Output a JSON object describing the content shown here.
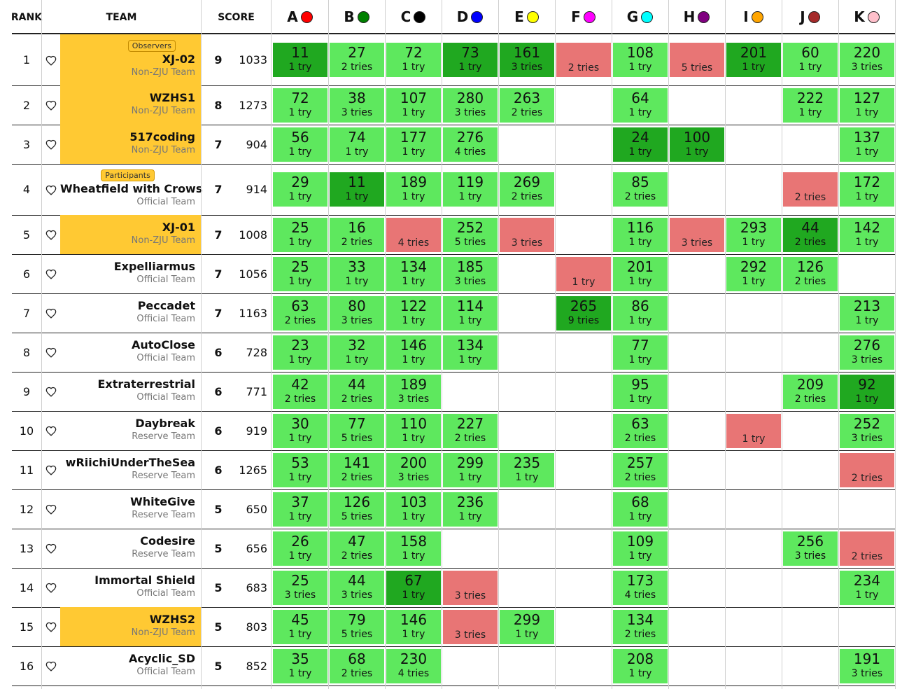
{
  "header": {
    "rank": "RANK",
    "team": "TEAM",
    "score": "SCORE"
  },
  "problems": [
    {
      "letter": "A",
      "color": "#ff0000"
    },
    {
      "letter": "B",
      "color": "#008000"
    },
    {
      "letter": "C",
      "color": "#000000"
    },
    {
      "letter": "D",
      "color": "#0000ff"
    },
    {
      "letter": "E",
      "color": "#ffff00"
    },
    {
      "letter": "F",
      "color": "#ff00ff"
    },
    {
      "letter": "G",
      "color": "#00ffff"
    },
    {
      "letter": "H",
      "color": "#800080"
    },
    {
      "letter": "I",
      "color": "#ffa500"
    },
    {
      "letter": "J",
      "color": "#a52a2a"
    },
    {
      "letter": "K",
      "color": "#ffc0cb"
    }
  ],
  "colors": {
    "solved": "#5ee85e",
    "first_solve": "#20a820",
    "failed": "#e87575",
    "highlight": "#ffc933"
  },
  "icons": {
    "favorite": "heart-outline-icon"
  },
  "rows": [
    {
      "rank": "1",
      "name": "XJ-02",
      "type": "Non-ZJU Team",
      "badge": "Observers",
      "highlight": true,
      "solved": "9",
      "penalty": "1033",
      "results": [
        {
          "s": "first",
          "time": "11",
          "attempts": "1 try"
        },
        {
          "s": "solved",
          "time": "27",
          "attempts": "2 tries"
        },
        {
          "s": "solved",
          "time": "72",
          "attempts": "1 try"
        },
        {
          "s": "first",
          "time": "73",
          "attempts": "1 try"
        },
        {
          "s": "first",
          "time": "161",
          "attempts": "3 tries"
        },
        {
          "s": "failed",
          "attempts": "2 tries"
        },
        {
          "s": "solved",
          "time": "108",
          "attempts": "1 try"
        },
        {
          "s": "failed",
          "attempts": "5 tries"
        },
        {
          "s": "first",
          "time": "201",
          "attempts": "1 try"
        },
        {
          "s": "solved",
          "time": "60",
          "attempts": "1 try"
        },
        {
          "s": "solved",
          "time": "220",
          "attempts": "3 tries"
        }
      ]
    },
    {
      "rank": "2",
      "name": "WZHS1",
      "type": "Non-ZJU Team",
      "highlight": true,
      "solved": "8",
      "penalty": "1273",
      "results": [
        {
          "s": "solved",
          "time": "72",
          "attempts": "1 try"
        },
        {
          "s": "solved",
          "time": "38",
          "attempts": "3 tries"
        },
        {
          "s": "solved",
          "time": "107",
          "attempts": "1 try"
        },
        {
          "s": "solved",
          "time": "280",
          "attempts": "3 tries"
        },
        {
          "s": "solved",
          "time": "263",
          "attempts": "2 tries"
        },
        null,
        {
          "s": "solved",
          "time": "64",
          "attempts": "1 try"
        },
        null,
        null,
        {
          "s": "solved",
          "time": "222",
          "attempts": "1 try"
        },
        {
          "s": "solved",
          "time": "127",
          "attempts": "1 try"
        }
      ]
    },
    {
      "rank": "3",
      "name": "517coding",
      "type": "Non-ZJU Team",
      "highlight": true,
      "solved": "7",
      "penalty": "904",
      "results": [
        {
          "s": "solved",
          "time": "56",
          "attempts": "1 try"
        },
        {
          "s": "solved",
          "time": "74",
          "attempts": "1 try"
        },
        {
          "s": "solved",
          "time": "177",
          "attempts": "1 try"
        },
        {
          "s": "solved",
          "time": "276",
          "attempts": "4 tries"
        },
        null,
        null,
        {
          "s": "first",
          "time": "24",
          "attempts": "1 try"
        },
        {
          "s": "first",
          "time": "100",
          "attempts": "1 try"
        },
        null,
        null,
        {
          "s": "solved",
          "time": "137",
          "attempts": "1 try"
        }
      ]
    },
    {
      "rank": "4",
      "name": "Wheatfield with Crows",
      "type": "Official Team",
      "badge": "Participants",
      "highlight": false,
      "solved": "7",
      "penalty": "914",
      "results": [
        {
          "s": "solved",
          "time": "29",
          "attempts": "1 try"
        },
        {
          "s": "first",
          "time": "11",
          "attempts": "1 try"
        },
        {
          "s": "solved",
          "time": "189",
          "attempts": "1 try"
        },
        {
          "s": "solved",
          "time": "119",
          "attempts": "1 try"
        },
        {
          "s": "solved",
          "time": "269",
          "attempts": "2 tries"
        },
        null,
        {
          "s": "solved",
          "time": "85",
          "attempts": "2 tries"
        },
        null,
        null,
        {
          "s": "failed",
          "attempts": "2 tries"
        },
        {
          "s": "solved",
          "time": "172",
          "attempts": "1 try"
        }
      ]
    },
    {
      "rank": "5",
      "name": "XJ-01",
      "type": "Non-ZJU Team",
      "highlight": true,
      "solved": "7",
      "penalty": "1008",
      "results": [
        {
          "s": "solved",
          "time": "25",
          "attempts": "1 try"
        },
        {
          "s": "solved",
          "time": "16",
          "attempts": "2 tries"
        },
        {
          "s": "failed",
          "attempts": "4 tries"
        },
        {
          "s": "solved",
          "time": "252",
          "attempts": "5 tries"
        },
        {
          "s": "failed",
          "attempts": "3 tries"
        },
        null,
        {
          "s": "solved",
          "time": "116",
          "attempts": "1 try"
        },
        {
          "s": "failed",
          "attempts": "3 tries"
        },
        {
          "s": "solved",
          "time": "293",
          "attempts": "1 try"
        },
        {
          "s": "first",
          "time": "44",
          "attempts": "2 tries"
        },
        {
          "s": "solved",
          "time": "142",
          "attempts": "1 try"
        }
      ]
    },
    {
      "rank": "6",
      "name": "Expelliarmus",
      "type": "Official Team",
      "highlight": false,
      "solved": "7",
      "penalty": "1056",
      "results": [
        {
          "s": "solved",
          "time": "25",
          "attempts": "1 try"
        },
        {
          "s": "solved",
          "time": "33",
          "attempts": "1 try"
        },
        {
          "s": "solved",
          "time": "134",
          "attempts": "1 try"
        },
        {
          "s": "solved",
          "time": "185",
          "attempts": "3 tries"
        },
        null,
        {
          "s": "failed",
          "attempts": "1 try"
        },
        {
          "s": "solved",
          "time": "201",
          "attempts": "1 try"
        },
        null,
        {
          "s": "solved",
          "time": "292",
          "attempts": "1 try"
        },
        {
          "s": "solved",
          "time": "126",
          "attempts": "2 tries"
        },
        null
      ]
    },
    {
      "rank": "7",
      "name": "Peccadet",
      "type": "Official Team",
      "highlight": false,
      "solved": "7",
      "penalty": "1163",
      "results": [
        {
          "s": "solved",
          "time": "63",
          "attempts": "2 tries"
        },
        {
          "s": "solved",
          "time": "80",
          "attempts": "3 tries"
        },
        {
          "s": "solved",
          "time": "122",
          "attempts": "1 try"
        },
        {
          "s": "solved",
          "time": "114",
          "attempts": "1 try"
        },
        null,
        {
          "s": "first",
          "time": "265",
          "attempts": "9 tries"
        },
        {
          "s": "solved",
          "time": "86",
          "attempts": "1 try"
        },
        null,
        null,
        null,
        {
          "s": "solved",
          "time": "213",
          "attempts": "1 try"
        }
      ]
    },
    {
      "rank": "8",
      "name": "AutoClose",
      "type": "Official Team",
      "highlight": false,
      "solved": "6",
      "penalty": "728",
      "results": [
        {
          "s": "solved",
          "time": "23",
          "attempts": "1 try"
        },
        {
          "s": "solved",
          "time": "32",
          "attempts": "1 try"
        },
        {
          "s": "solved",
          "time": "146",
          "attempts": "1 try"
        },
        {
          "s": "solved",
          "time": "134",
          "attempts": "1 try"
        },
        null,
        null,
        {
          "s": "solved",
          "time": "77",
          "attempts": "1 try"
        },
        null,
        null,
        null,
        {
          "s": "solved",
          "time": "276",
          "attempts": "3 tries"
        }
      ]
    },
    {
      "rank": "9",
      "name": "Extraterrestrial",
      "type": "Official Team",
      "highlight": false,
      "solved": "6",
      "penalty": "771",
      "results": [
        {
          "s": "solved",
          "time": "42",
          "attempts": "2 tries"
        },
        {
          "s": "solved",
          "time": "44",
          "attempts": "2 tries"
        },
        {
          "s": "solved",
          "time": "189",
          "attempts": "3 tries"
        },
        null,
        null,
        null,
        {
          "s": "solved",
          "time": "95",
          "attempts": "1 try"
        },
        null,
        null,
        {
          "s": "solved",
          "time": "209",
          "attempts": "2 tries"
        },
        {
          "s": "first",
          "time": "92",
          "attempts": "1 try"
        }
      ]
    },
    {
      "rank": "10",
      "name": "Daybreak",
      "type": "Reserve Team",
      "highlight": false,
      "solved": "6",
      "penalty": "919",
      "results": [
        {
          "s": "solved",
          "time": "30",
          "attempts": "1 try"
        },
        {
          "s": "solved",
          "time": "77",
          "attempts": "5 tries"
        },
        {
          "s": "solved",
          "time": "110",
          "attempts": "1 try"
        },
        {
          "s": "solved",
          "time": "227",
          "attempts": "2 tries"
        },
        null,
        null,
        {
          "s": "solved",
          "time": "63",
          "attempts": "2 tries"
        },
        null,
        {
          "s": "failed",
          "attempts": "1 try"
        },
        null,
        {
          "s": "solved",
          "time": "252",
          "attempts": "3 tries"
        }
      ]
    },
    {
      "rank": "11",
      "name": "wRiichiUnderTheSea",
      "type": "Reserve Team",
      "highlight": false,
      "solved": "6",
      "penalty": "1265",
      "results": [
        {
          "s": "solved",
          "time": "53",
          "attempts": "1 try"
        },
        {
          "s": "solved",
          "time": "141",
          "attempts": "2 tries"
        },
        {
          "s": "solved",
          "time": "200",
          "attempts": "3 tries"
        },
        {
          "s": "solved",
          "time": "299",
          "attempts": "1 try"
        },
        {
          "s": "solved",
          "time": "235",
          "attempts": "1 try"
        },
        null,
        {
          "s": "solved",
          "time": "257",
          "attempts": "2 tries"
        },
        null,
        null,
        null,
        {
          "s": "failed",
          "attempts": "2 tries"
        }
      ]
    },
    {
      "rank": "12",
      "name": "WhiteGive",
      "type": "Reserve Team",
      "highlight": false,
      "solved": "5",
      "penalty": "650",
      "results": [
        {
          "s": "solved",
          "time": "37",
          "attempts": "1 try"
        },
        {
          "s": "solved",
          "time": "126",
          "attempts": "5 tries"
        },
        {
          "s": "solved",
          "time": "103",
          "attempts": "1 try"
        },
        {
          "s": "solved",
          "time": "236",
          "attempts": "1 try"
        },
        null,
        null,
        {
          "s": "solved",
          "time": "68",
          "attempts": "1 try"
        },
        null,
        null,
        null,
        null
      ]
    },
    {
      "rank": "13",
      "name": "Codesire",
      "type": "Reserve Team",
      "highlight": false,
      "solved": "5",
      "penalty": "656",
      "results": [
        {
          "s": "solved",
          "time": "26",
          "attempts": "1 try"
        },
        {
          "s": "solved",
          "time": "47",
          "attempts": "2 tries"
        },
        {
          "s": "solved",
          "time": "158",
          "attempts": "1 try"
        },
        null,
        null,
        null,
        {
          "s": "solved",
          "time": "109",
          "attempts": "1 try"
        },
        null,
        null,
        {
          "s": "solved",
          "time": "256",
          "attempts": "3 tries"
        },
        {
          "s": "failed",
          "attempts": "2 tries"
        }
      ]
    },
    {
      "rank": "14",
      "name": "Immortal Shield",
      "type": "Official Team",
      "highlight": false,
      "solved": "5",
      "penalty": "683",
      "results": [
        {
          "s": "solved",
          "time": "25",
          "attempts": "3 tries"
        },
        {
          "s": "solved",
          "time": "44",
          "attempts": "3 tries"
        },
        {
          "s": "first",
          "time": "67",
          "attempts": "1 try"
        },
        {
          "s": "failed",
          "attempts": "3 tries"
        },
        null,
        null,
        {
          "s": "solved",
          "time": "173",
          "attempts": "4 tries"
        },
        null,
        null,
        null,
        {
          "s": "solved",
          "time": "234",
          "attempts": "1 try"
        }
      ]
    },
    {
      "rank": "15",
      "name": "WZHS2",
      "type": "Non-ZJU Team",
      "highlight": true,
      "solved": "5",
      "penalty": "803",
      "results": [
        {
          "s": "solved",
          "time": "45",
          "attempts": "1 try"
        },
        {
          "s": "solved",
          "time": "79",
          "attempts": "5 tries"
        },
        {
          "s": "solved",
          "time": "146",
          "attempts": "1 try"
        },
        {
          "s": "failed",
          "attempts": "3 tries"
        },
        {
          "s": "solved",
          "time": "299",
          "attempts": "1 try"
        },
        null,
        {
          "s": "solved",
          "time": "134",
          "attempts": "2 tries"
        },
        null,
        null,
        null,
        null
      ]
    },
    {
      "rank": "16",
      "name": "Acyclic_SD",
      "type": "Official Team",
      "highlight": false,
      "solved": "5",
      "penalty": "852",
      "results": [
        {
          "s": "solved",
          "time": "35",
          "attempts": "1 try"
        },
        {
          "s": "solved",
          "time": "68",
          "attempts": "2 tries"
        },
        {
          "s": "solved",
          "time": "230",
          "attempts": "4 tries"
        },
        null,
        null,
        null,
        {
          "s": "solved",
          "time": "208",
          "attempts": "1 try"
        },
        null,
        null,
        null,
        {
          "s": "solved",
          "time": "191",
          "attempts": "3 tries"
        }
      ]
    }
  ]
}
